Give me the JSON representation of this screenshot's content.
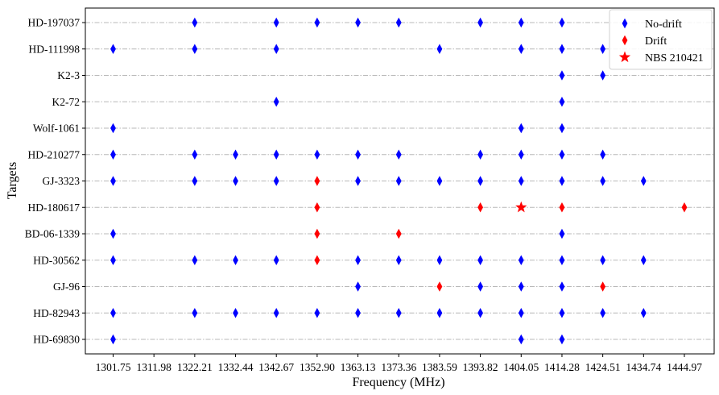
{
  "chart_data": {
    "type": "scatter",
    "xlabel": "Frequency (MHz)",
    "ylabel": "Targets",
    "x_ticks": [
      "1301.75",
      "1311.98",
      "1322.21",
      "1332.44",
      "1342.67",
      "1352.90",
      "1363.13",
      "1373.36",
      "1383.59",
      "1393.82",
      "1404.05",
      "1414.28",
      "1424.51",
      "1434.74",
      "1444.97"
    ],
    "targets": [
      "HD-197037",
      "HD-111998",
      "K2-3",
      "K2-72",
      "Wolf-1061",
      "HD-210277",
      "GJ-3323",
      "HD-180617",
      "BD-06-1339",
      "HD-30562",
      "GJ-96",
      "HD-82943",
      "HD-69830"
    ],
    "grid": "horizontal",
    "legend_position": "top-right",
    "series": [
      {
        "name": "No-drift",
        "marker": "thin-diamond",
        "color": "#0000ff",
        "points": [
          {
            "x": 1322.21,
            "y": "HD-197037"
          },
          {
            "x": 1342.67,
            "y": "HD-197037"
          },
          {
            "x": 1352.9,
            "y": "HD-197037"
          },
          {
            "x": 1363.13,
            "y": "HD-197037"
          },
          {
            "x": 1373.36,
            "y": "HD-197037"
          },
          {
            "x": 1393.82,
            "y": "HD-197037"
          },
          {
            "x": 1404.05,
            "y": "HD-197037"
          },
          {
            "x": 1414.28,
            "y": "HD-197037"
          },
          {
            "x": 1301.75,
            "y": "HD-111998"
          },
          {
            "x": 1322.21,
            "y": "HD-111998"
          },
          {
            "x": 1342.67,
            "y": "HD-111998"
          },
          {
            "x": 1383.59,
            "y": "HD-111998"
          },
          {
            "x": 1404.05,
            "y": "HD-111998"
          },
          {
            "x": 1414.28,
            "y": "HD-111998"
          },
          {
            "x": 1424.51,
            "y": "HD-111998"
          },
          {
            "x": 1414.28,
            "y": "K2-3"
          },
          {
            "x": 1424.51,
            "y": "K2-3"
          },
          {
            "x": 1342.67,
            "y": "K2-72"
          },
          {
            "x": 1414.28,
            "y": "K2-72"
          },
          {
            "x": 1301.75,
            "y": "Wolf-1061"
          },
          {
            "x": 1404.05,
            "y": "Wolf-1061"
          },
          {
            "x": 1414.28,
            "y": "Wolf-1061"
          },
          {
            "x": 1301.75,
            "y": "HD-210277"
          },
          {
            "x": 1322.21,
            "y": "HD-210277"
          },
          {
            "x": 1332.44,
            "y": "HD-210277"
          },
          {
            "x": 1342.67,
            "y": "HD-210277"
          },
          {
            "x": 1352.9,
            "y": "HD-210277"
          },
          {
            "x": 1363.13,
            "y": "HD-210277"
          },
          {
            "x": 1373.36,
            "y": "HD-210277"
          },
          {
            "x": 1393.82,
            "y": "HD-210277"
          },
          {
            "x": 1404.05,
            "y": "HD-210277"
          },
          {
            "x": 1414.28,
            "y": "HD-210277"
          },
          {
            "x": 1424.51,
            "y": "HD-210277"
          },
          {
            "x": 1301.75,
            "y": "GJ-3323"
          },
          {
            "x": 1322.21,
            "y": "GJ-3323"
          },
          {
            "x": 1332.44,
            "y": "GJ-3323"
          },
          {
            "x": 1342.67,
            "y": "GJ-3323"
          },
          {
            "x": 1363.13,
            "y": "GJ-3323"
          },
          {
            "x": 1373.36,
            "y": "GJ-3323"
          },
          {
            "x": 1383.59,
            "y": "GJ-3323"
          },
          {
            "x": 1393.82,
            "y": "GJ-3323"
          },
          {
            "x": 1404.05,
            "y": "GJ-3323"
          },
          {
            "x": 1414.28,
            "y": "GJ-3323"
          },
          {
            "x": 1424.51,
            "y": "GJ-3323"
          },
          {
            "x": 1434.74,
            "y": "GJ-3323"
          },
          {
            "x": 1301.75,
            "y": "BD-06-1339"
          },
          {
            "x": 1414.28,
            "y": "BD-06-1339"
          },
          {
            "x": 1301.75,
            "y": "HD-30562"
          },
          {
            "x": 1322.21,
            "y": "HD-30562"
          },
          {
            "x": 1332.44,
            "y": "HD-30562"
          },
          {
            "x": 1342.67,
            "y": "HD-30562"
          },
          {
            "x": 1363.13,
            "y": "HD-30562"
          },
          {
            "x": 1373.36,
            "y": "HD-30562"
          },
          {
            "x": 1383.59,
            "y": "HD-30562"
          },
          {
            "x": 1393.82,
            "y": "HD-30562"
          },
          {
            "x": 1404.05,
            "y": "HD-30562"
          },
          {
            "x": 1414.28,
            "y": "HD-30562"
          },
          {
            "x": 1424.51,
            "y": "HD-30562"
          },
          {
            "x": 1434.74,
            "y": "HD-30562"
          },
          {
            "x": 1363.13,
            "y": "GJ-96"
          },
          {
            "x": 1393.82,
            "y": "GJ-96"
          },
          {
            "x": 1404.05,
            "y": "GJ-96"
          },
          {
            "x": 1414.28,
            "y": "GJ-96"
          },
          {
            "x": 1301.75,
            "y": "HD-82943"
          },
          {
            "x": 1322.21,
            "y": "HD-82943"
          },
          {
            "x": 1332.44,
            "y": "HD-82943"
          },
          {
            "x": 1342.67,
            "y": "HD-82943"
          },
          {
            "x": 1352.9,
            "y": "HD-82943"
          },
          {
            "x": 1363.13,
            "y": "HD-82943"
          },
          {
            "x": 1373.36,
            "y": "HD-82943"
          },
          {
            "x": 1383.59,
            "y": "HD-82943"
          },
          {
            "x": 1393.82,
            "y": "HD-82943"
          },
          {
            "x": 1404.05,
            "y": "HD-82943"
          },
          {
            "x": 1414.28,
            "y": "HD-82943"
          },
          {
            "x": 1424.51,
            "y": "HD-82943"
          },
          {
            "x": 1434.74,
            "y": "HD-82943"
          },
          {
            "x": 1301.75,
            "y": "HD-69830"
          },
          {
            "x": 1404.05,
            "y": "HD-69830"
          },
          {
            "x": 1414.28,
            "y": "HD-69830"
          }
        ]
      },
      {
        "name": "Drift",
        "marker": "thin-diamond",
        "color": "#ff0000",
        "points": [
          {
            "x": 1352.9,
            "y": "GJ-3323"
          },
          {
            "x": 1352.9,
            "y": "HD-180617"
          },
          {
            "x": 1393.82,
            "y": "HD-180617"
          },
          {
            "x": 1414.28,
            "y": "HD-180617"
          },
          {
            "x": 1444.97,
            "y": "HD-180617"
          },
          {
            "x": 1352.9,
            "y": "BD-06-1339"
          },
          {
            "x": 1373.36,
            "y": "BD-06-1339"
          },
          {
            "x": 1352.9,
            "y": "HD-30562"
          },
          {
            "x": 1383.59,
            "y": "GJ-96"
          },
          {
            "x": 1424.51,
            "y": "GJ-96"
          }
        ]
      },
      {
        "name": "NBS 210421",
        "marker": "star",
        "color": "#ff0000",
        "points": [
          {
            "x": 1404.05,
            "y": "HD-180617"
          }
        ]
      }
    ]
  }
}
